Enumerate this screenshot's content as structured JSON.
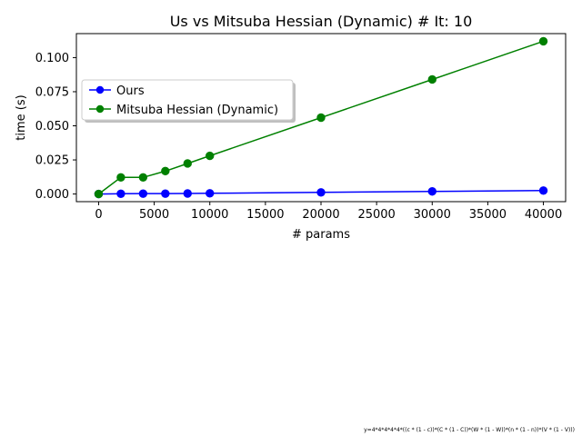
{
  "chart_data": {
    "type": "line",
    "title": "Us vs Mitsuba Hessian (Dynamic) # It: 10",
    "xlabel": "# params",
    "ylabel": "time (s)",
    "xlim": [
      -2000,
      42000
    ],
    "ylim": [
      -0.0056,
      0.1176
    ],
    "xticks": [
      0,
      5000,
      10000,
      15000,
      20000,
      25000,
      30000,
      35000,
      40000
    ],
    "yticks": [
      0.0,
      0.025,
      0.05,
      0.075,
      0.1
    ],
    "ytick_labels": [
      "0.000",
      "0.025",
      "0.050",
      "0.075",
      "0.100"
    ],
    "x": [
      0,
      2000,
      4000,
      6000,
      8000,
      10000,
      20000,
      30000,
      40000
    ],
    "series": [
      {
        "name": "Ours",
        "color": "#0000ff",
        "values": [
          0.0,
          0.0002,
          0.0003,
          0.0003,
          0.0004,
          0.0005,
          0.0012,
          0.0019,
          0.0025
        ]
      },
      {
        "name": "Mitsuba Hessian (Dynamic)",
        "color": "#008000",
        "values": [
          0.0,
          0.0122,
          0.0122,
          0.0168,
          0.0224,
          0.028,
          0.056,
          0.084,
          0.112
        ]
      }
    ],
    "legend": "upper-left",
    "grid": false,
    "footnote": "y=4*4*4*4*4*((c * (1 - c))*(C * (1 - C))*(W * (1 - W))*(n * (1 - n))*(V * (1 - V)))"
  }
}
